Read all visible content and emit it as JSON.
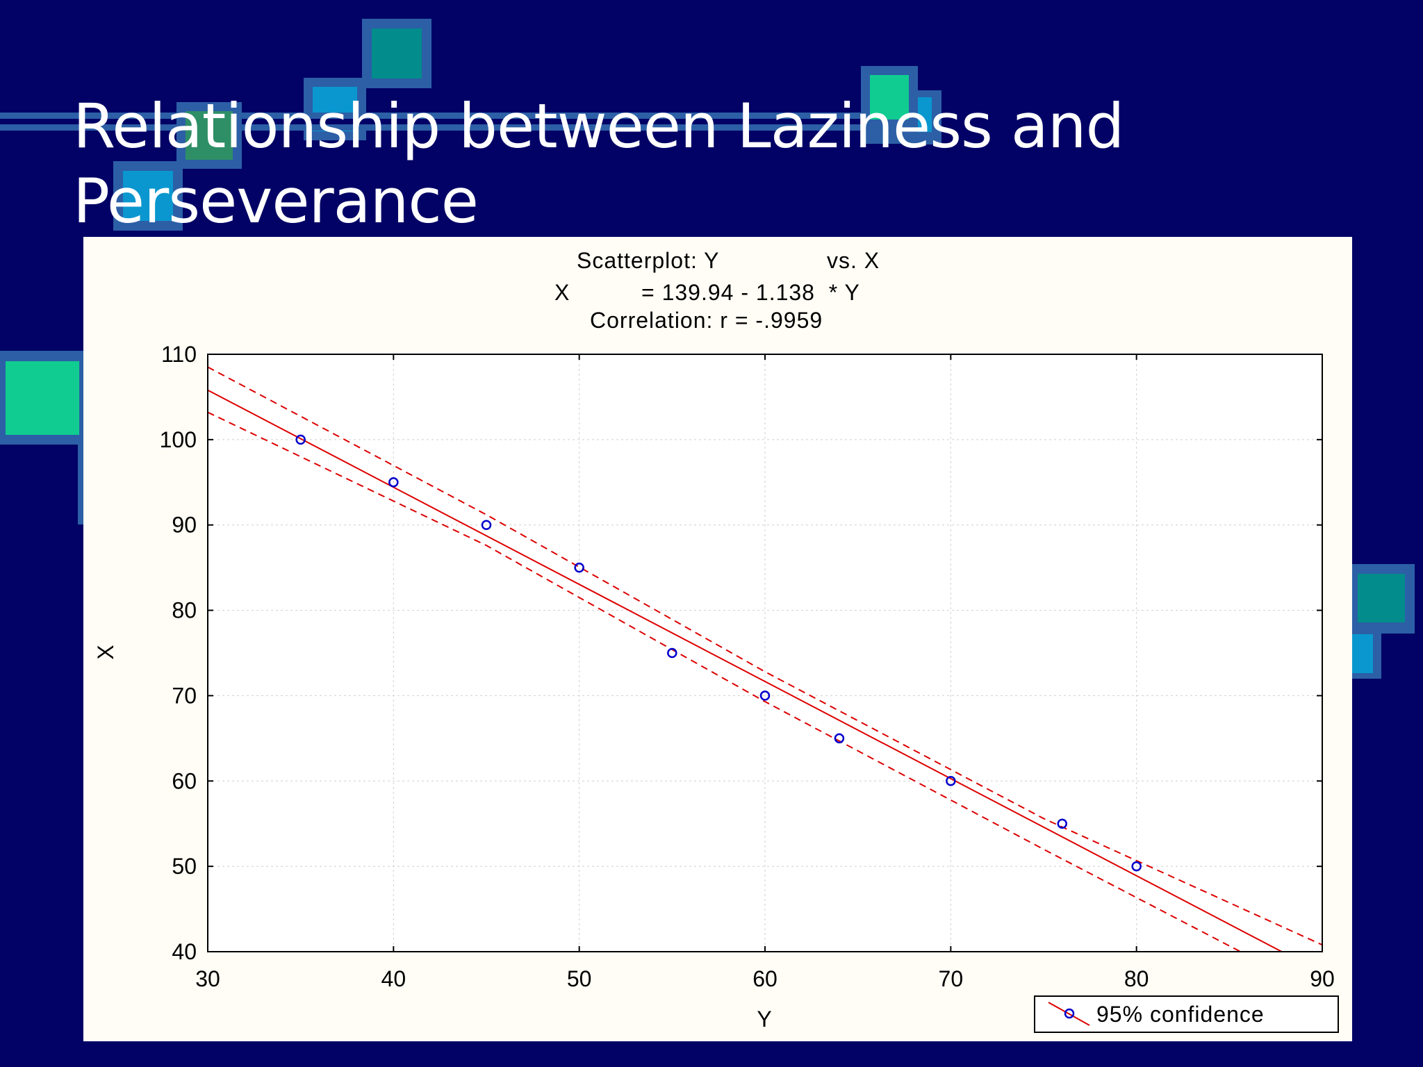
{
  "slide": {
    "title_line1": "Relationship between Laziness and",
    "title_line2": "Perseverance",
    "background": "#020266"
  },
  "chart_data": {
    "type": "scatter",
    "title": "Scatterplot: Y vs. X",
    "title_parts": {
      "left": "Scatterplot: Y",
      "right": "vs. X"
    },
    "equation": {
      "lhs": "X",
      "rhs": "= 139.94 - 1.138  * Y"
    },
    "subtitle": "Correlation: r = -.9959",
    "xlabel": "Y",
    "ylabel": "X",
    "xlim": [
      30,
      90
    ],
    "ylim": [
      40,
      110
    ],
    "xticks": [
      30,
      40,
      50,
      60,
      70,
      80,
      90
    ],
    "yticks": [
      40,
      50,
      60,
      70,
      80,
      90,
      100,
      110
    ],
    "grid": true,
    "points": [
      {
        "x": 35,
        "y": 100
      },
      {
        "x": 40,
        "y": 95
      },
      {
        "x": 45,
        "y": 90
      },
      {
        "x": 50,
        "y": 85
      },
      {
        "x": 55,
        "y": 75
      },
      {
        "x": 60,
        "y": 70
      },
      {
        "x": 64,
        "y": 65
      },
      {
        "x": 70,
        "y": 60
      },
      {
        "x": 76,
        "y": 55
      },
      {
        "x": 80,
        "y": 50
      }
    ],
    "regression": {
      "intercept": 139.94,
      "slope": -1.138
    },
    "confidence_band": {
      "upper": [
        [
          30,
          108.5
        ],
        [
          45,
          91.2
        ],
        [
          60,
          72.8
        ],
        [
          75,
          55.6
        ],
        [
          90,
          40.8
        ]
      ],
      "lower": [
        [
          30,
          103.2
        ],
        [
          45,
          87.6
        ],
        [
          60,
          69.3
        ],
        [
          75,
          52.0
        ],
        [
          85.6,
          40.0
        ]
      ]
    },
    "legend": {
      "label": "95% confidence",
      "placement": "bottom-right"
    },
    "colors": {
      "points": "#0000cc",
      "fit": "#dd0000",
      "band": "#dd0000"
    }
  }
}
